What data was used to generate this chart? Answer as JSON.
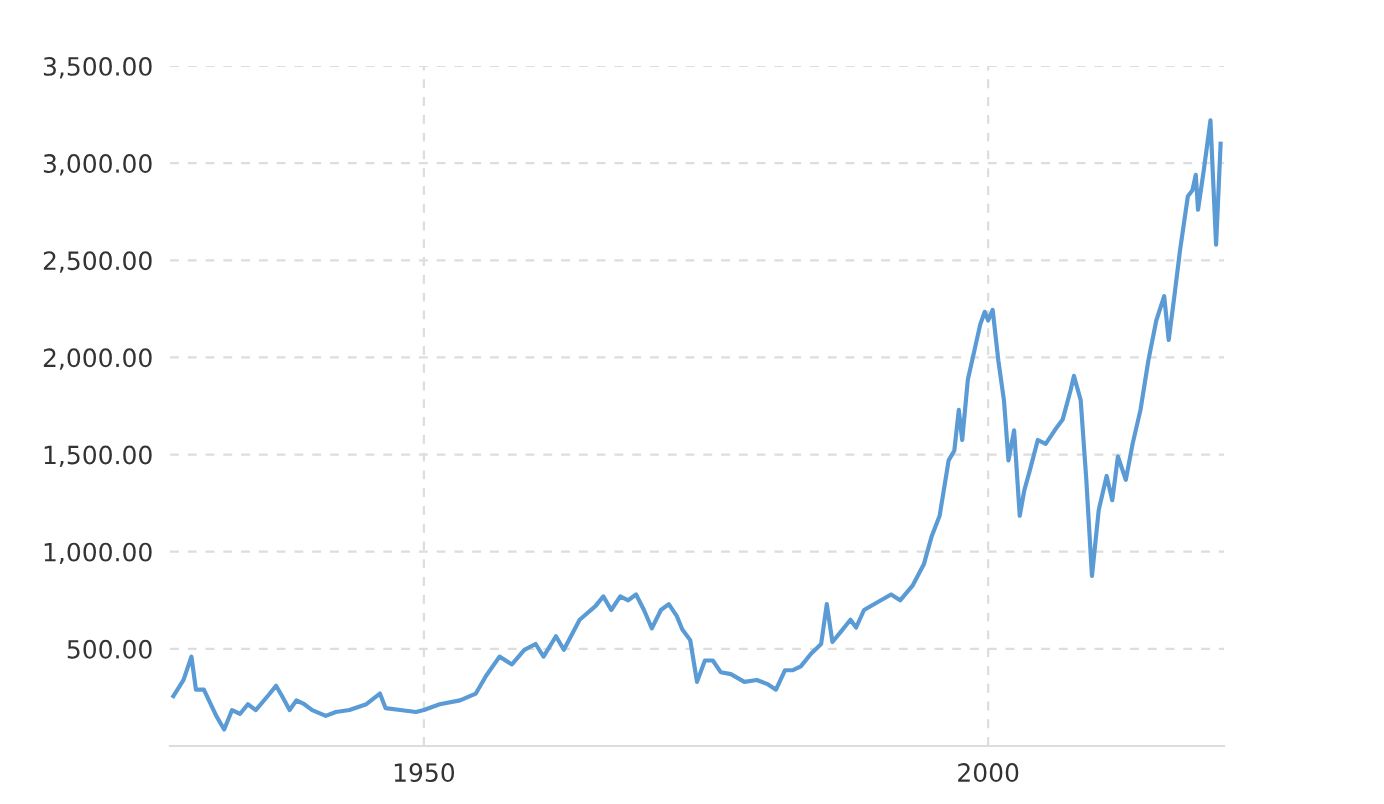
{
  "chart_data": {
    "type": "line",
    "x": [
      1927.8,
      1928.7,
      1929.4,
      1929.8,
      1930.5,
      1931.6,
      1932.3,
      1933.0,
      1933.7,
      1934.4,
      1935.1,
      1936.2,
      1936.9,
      1937.4,
      1938.1,
      1938.7,
      1939.4,
      1940.1,
      1941.3,
      1942.2,
      1943.4,
      1944.9,
      1946.1,
      1946.6,
      1947.9,
      1949.3,
      1950.0,
      1951.4,
      1953.2,
      1954.6,
      1955.5,
      1956.7,
      1957.8,
      1958.9,
      1959.9,
      1960.6,
      1961.7,
      1962.4,
      1963.8,
      1965.2,
      1965.9,
      1966.6,
      1967.4,
      1968.1,
      1968.8,
      1969.5,
      1970.2,
      1971.0,
      1971.7,
      1972.4,
      1972.9,
      1973.6,
      1974.2,
      1974.9,
      1975.6,
      1976.3,
      1977.2,
      1978.4,
      1979.5,
      1980.4,
      1981.2,
      1982.0,
      1982.7,
      1983.4,
      1984.3,
      1985.2,
      1985.7,
      1986.2,
      1986.9,
      1987.8,
      1988.3,
      1989.0,
      1990.5,
      1991.4,
      1992.2,
      1993.3,
      1994.3,
      1995.0,
      1995.7,
      1996.5,
      1997.0,
      1997.4,
      1997.7,
      1998.2,
      1998.8,
      1999.3,
      1999.7,
      2000.0,
      2000.4,
      2000.9,
      2001.4,
      2001.8,
      2002.3,
      2002.8,
      2003.2,
      2003.7,
      2004.4,
      2005.1,
      2005.9,
      2006.6,
      2007.3,
      2007.6,
      2008.2,
      2008.7,
      2009.2,
      2009.8,
      2010.5,
      2011.0,
      2011.5,
      2012.2,
      2012.8,
      2013.5,
      2014.2,
      2014.9,
      2015.6,
      2016.0,
      2016.5,
      2017.0,
      2017.7,
      2018.1,
      2018.4,
      2018.6,
      2019.1,
      2019.7,
      2019.9,
      2020.2,
      2020.6
    ],
    "series": [
      {
        "color": "#5b9bd5",
        "values": [
          257,
          340,
          460,
          290,
          290,
          155,
          85,
          185,
          165,
          215,
          185,
          260,
          310,
          260,
          185,
          235,
          215,
          185,
          155,
          175,
          185,
          215,
          270,
          195,
          185,
          175,
          185,
          215,
          235,
          270,
          360,
          460,
          420,
          495,
          525,
          460,
          565,
          495,
          650,
          720,
          770,
          700,
          770,
          750,
          780,
          700,
          605,
          700,
          730,
          670,
          600,
          545,
          330,
          440,
          440,
          380,
          370,
          330,
          340,
          320,
          290,
          390,
          390,
          410,
          475,
          525,
          730,
          535,
          585,
          650,
          610,
          700,
          750,
          780,
          750,
          825,
          935,
          1080,
          1185,
          1470,
          1520,
          1730,
          1575,
          1885,
          2040,
          2170,
          2235,
          2190,
          2245,
          1985,
          1780,
          1470,
          1625,
          1185,
          1315,
          1420,
          1575,
          1555,
          1625,
          1680,
          1830,
          1905,
          1780,
          1370,
          875,
          1215,
          1390,
          1265,
          1490,
          1370,
          1555,
          1730,
          1985,
          2190,
          2315,
          2090,
          2315,
          2550,
          2830,
          2860,
          2940,
          2760,
          2960,
          3220,
          2960,
          2580,
          3100
        ]
      }
    ],
    "xlim": [
      1927.5,
      2020.9
    ],
    "xticks": [
      1950,
      2000
    ],
    "ylim": [
      0,
      3500
    ],
    "yticks": [
      {
        "value": 0,
        "label": null
      },
      {
        "value": 500,
        "label": "500.00"
      },
      {
        "value": 1000,
        "label": "1,000.00"
      },
      {
        "value": 1500,
        "label": "1,500.00"
      },
      {
        "value": 2000,
        "label": "2,000.00"
      },
      {
        "value": 2500,
        "label": "2,500.00"
      },
      {
        "value": 3000,
        "label": "3,000.00"
      },
      {
        "value": 3500,
        "label": "3,500.00"
      }
    ],
    "grid": true,
    "legend": false,
    "marker": "none",
    "line_style": "solid"
  }
}
